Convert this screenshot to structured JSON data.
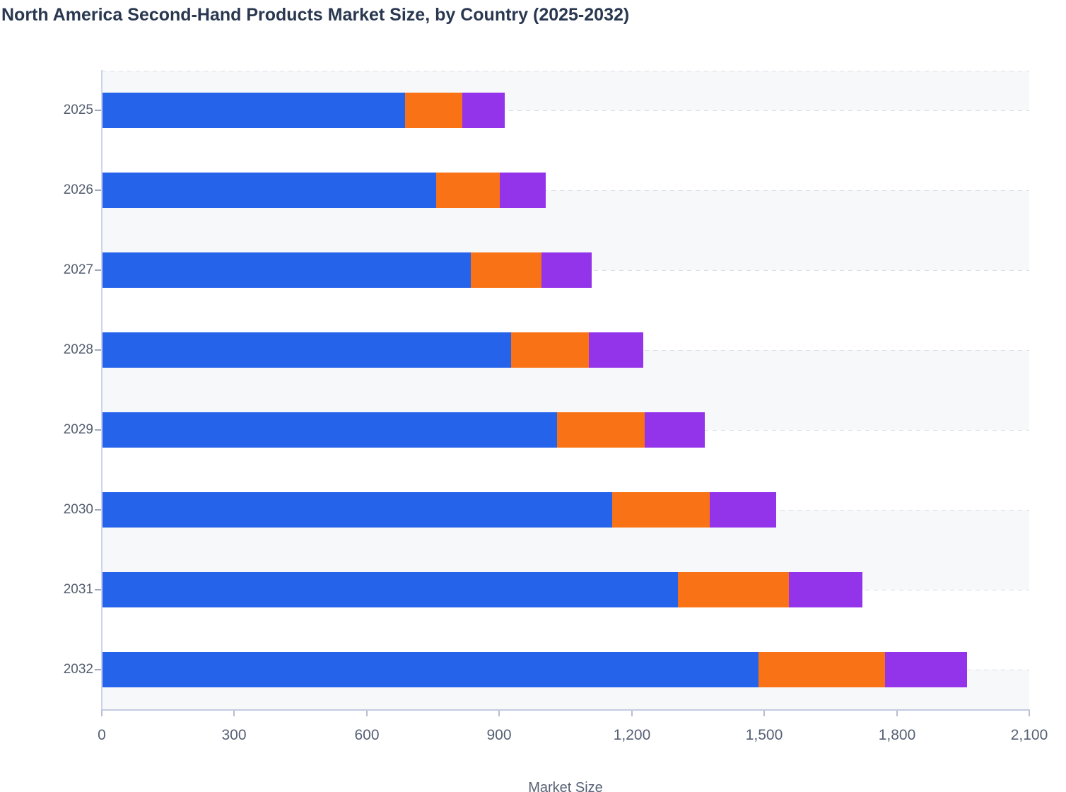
{
  "title": "North America Second-Hand Products Market Size, by Country (2025-2032)",
  "x_axis": {
    "label": "Market Size",
    "tick_labels": [
      "0",
      "300",
      "600",
      "900",
      "1,200",
      "1,500",
      "1,800",
      "2,100"
    ],
    "min": 0,
    "max": 2100
  },
  "y_axis": {
    "categories": [
      "2025",
      "2026",
      "2027",
      "2028",
      "2029",
      "2030",
      "2031",
      "2032"
    ]
  },
  "colors": {
    "blue": "#2563eb",
    "orange": "#f97316",
    "purple": "#9333ea",
    "band_gray": "#f7f8fa",
    "gridline": "#dadde4",
    "axis_line": "#cdd3e8",
    "tick": "#a0a8bc",
    "axis_text": "#566074",
    "title_text": "#293850",
    "background": "#ffffff"
  },
  "chart_data": {
    "type": "bar",
    "orientation": "horizontal",
    "stacked": true,
    "title": "North America Second-Hand Products Market Size, by Country (2025-2032)",
    "xlabel": "Market Size",
    "ylabel": "",
    "categories": [
      "2025",
      "2026",
      "2027",
      "2028",
      "2029",
      "2030",
      "2031",
      "2032"
    ],
    "series": [
      {
        "name": "blue",
        "color": "#2563eb",
        "values": [
          687,
          757,
          836,
          926,
          1031,
          1156,
          1305,
          1487
        ]
      },
      {
        "name": "orange",
        "color": "#f97316",
        "values": [
          130,
          144,
          159,
          177,
          198,
          221,
          251,
          287
        ]
      },
      {
        "name": "purple",
        "color": "#9333ea",
        "values": [
          95,
          104,
          114,
          123,
          136,
          150,
          167,
          186
        ]
      }
    ],
    "totals": [
      912,
      1005,
      1109,
      1226,
      1365,
      1527,
      1723,
      1960
    ],
    "xlim": [
      0,
      2100
    ],
    "x_ticks": [
      0,
      300,
      600,
      900,
      1200,
      1500,
      1800,
      2100
    ],
    "grid": "dashed horizontal row lines with alternating gray/white bands between them",
    "legend_visible": false
  }
}
